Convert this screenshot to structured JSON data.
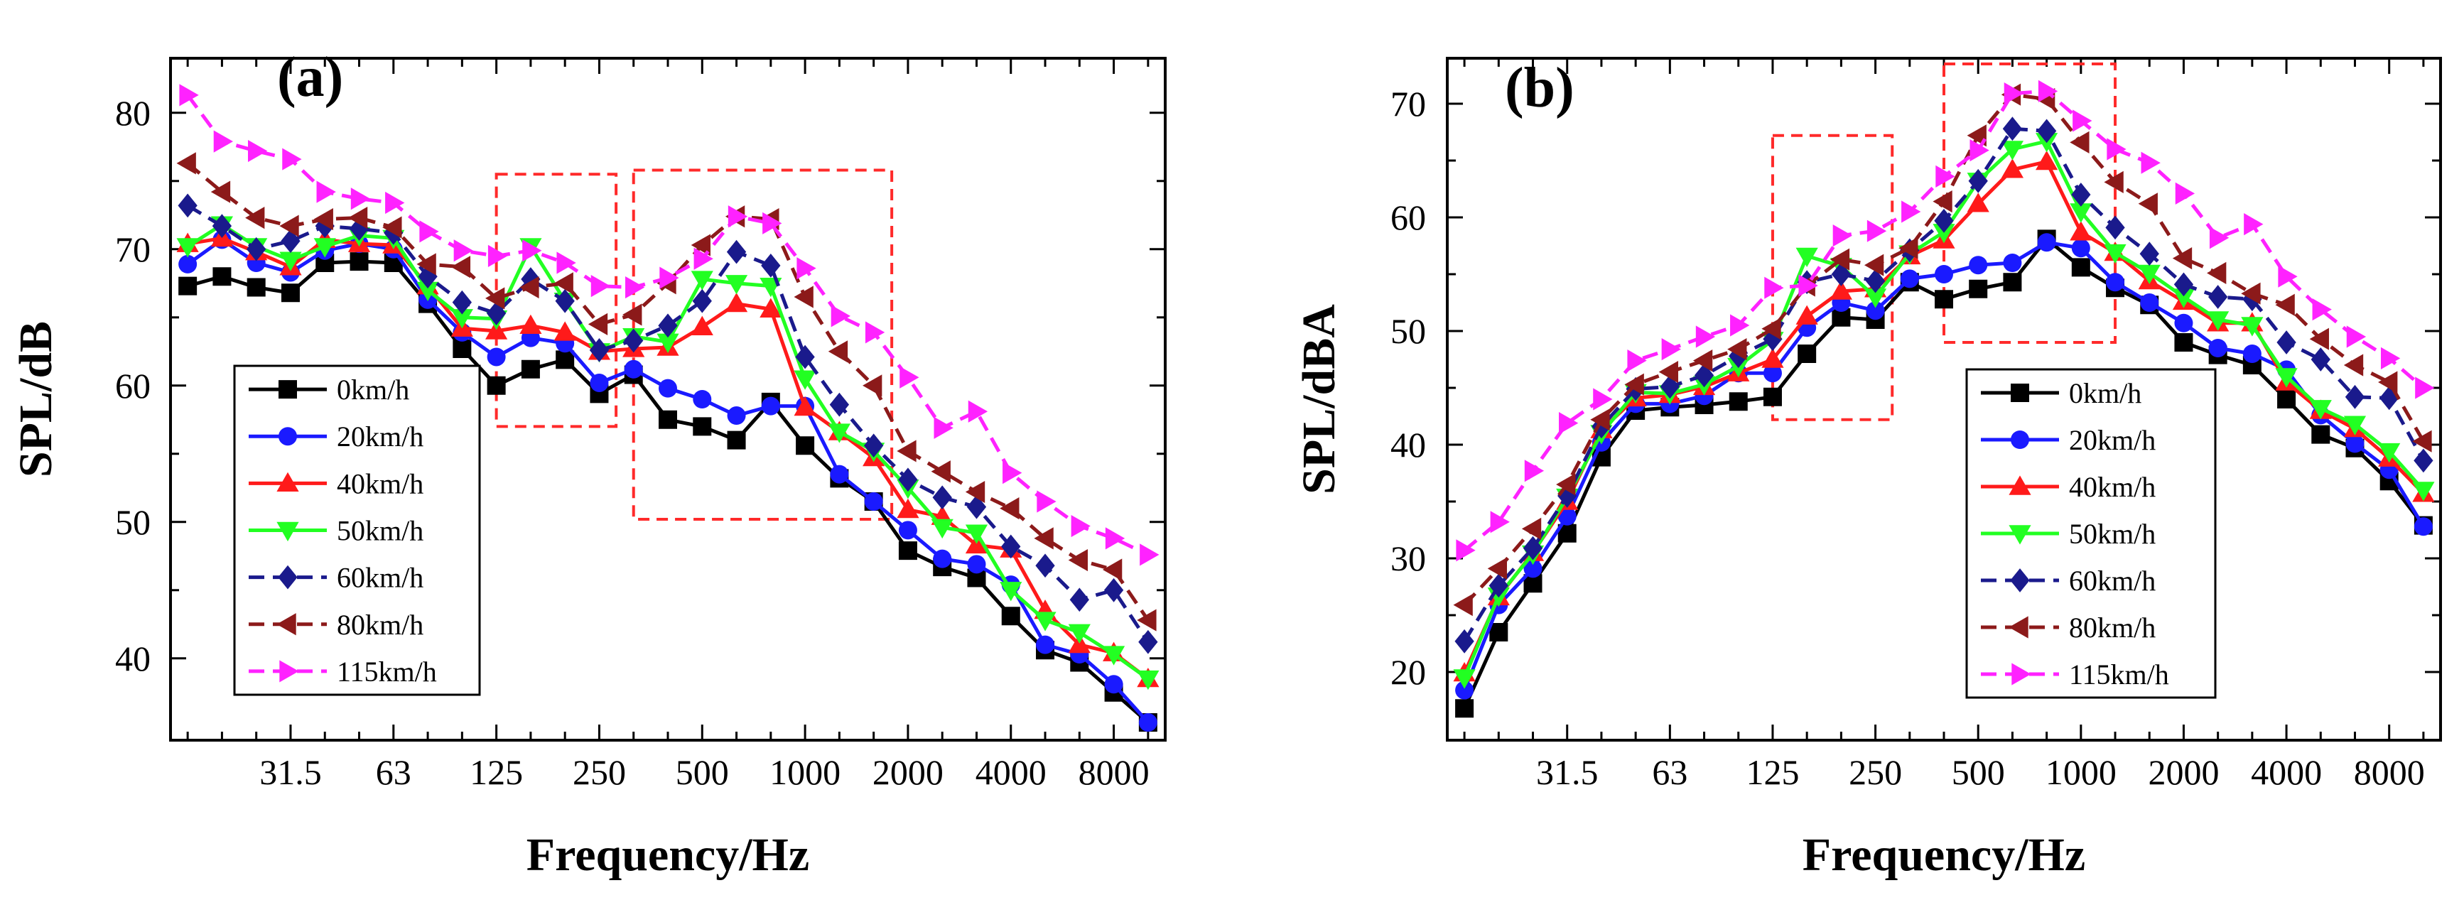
{
  "figure": {
    "colors": {
      "0km/h": "#000000",
      "20km/h": "#1a1aff",
      "40km/h": "#ff1a1a",
      "50km/h": "#22ff22",
      "60km/h": "#1a1a8c",
      "80km/h": "#8c1a1a",
      "115km/h": "#ff22ff",
      "highlight_box": "#ff2a2a"
    }
  },
  "chart_data": [
    {
      "type": "line",
      "panel_label": "(a)",
      "xlabel": "Frequency/Hz",
      "ylabel": "SPL/dB",
      "x_positions": [
        16,
        20,
        25,
        31.5,
        40,
        50,
        63,
        80,
        100,
        125,
        160,
        200,
        250,
        315,
        400,
        500,
        630,
        800,
        1000,
        1250,
        1600,
        2000,
        2500,
        3150,
        4000,
        5000,
        6300,
        8000,
        10000
      ],
      "x_tick_labels": [
        "31.5",
        "63",
        "125",
        "250",
        "500",
        "1000",
        "2000",
        "4000",
        "8000"
      ],
      "y_tick_labels": [
        "40",
        "50",
        "60",
        "70",
        "80"
      ],
      "ylim": [
        34,
        84
      ],
      "yticks": [
        40,
        50,
        60,
        70,
        80
      ],
      "highlight_boxes": [
        {
          "x_range": [
            125,
            280
          ],
          "y_range": [
            57,
            75.5
          ]
        },
        {
          "x_range": [
            315,
            1800
          ],
          "y_range": [
            50.2,
            75.8
          ]
        }
      ],
      "series": [
        {
          "name": "0km/h",
          "marker": "square",
          "dash": "solid",
          "values": [
            67.3,
            68.0,
            67.2,
            66.8,
            69.0,
            69.1,
            69.0,
            66.0,
            62.7,
            60.0,
            61.2,
            61.9,
            59.4,
            60.8,
            57.5,
            57.0,
            56.0,
            58.8,
            55.6,
            53.2,
            51.5,
            47.9,
            46.7,
            45.9,
            43.1,
            40.6,
            39.7,
            37.5,
            35.3
          ]
        },
        {
          "name": "20km/h",
          "marker": "circle",
          "dash": "solid",
          "values": [
            68.9,
            70.7,
            69.0,
            68.3,
            69.9,
            70.4,
            70.0,
            66.3,
            63.9,
            62.1,
            63.5,
            63.1,
            60.2,
            61.2,
            59.8,
            59.0,
            57.8,
            58.5,
            58.5,
            53.5,
            51.5,
            49.4,
            47.3,
            46.9,
            45.4,
            41.0,
            40.3,
            38.1,
            35.3
          ]
        },
        {
          "name": "40km/h",
          "marker": "triangle-up",
          "dash": "solid",
          "values": [
            70.4,
            70.8,
            69.8,
            68.7,
            70.7,
            70.4,
            70.3,
            67.3,
            64.2,
            64.0,
            64.4,
            63.9,
            62.5,
            62.7,
            62.8,
            64.3,
            66.0,
            65.6,
            58.4,
            56.6,
            54.7,
            50.9,
            50.4,
            48.3,
            48.0,
            43.5,
            41.0,
            40.4,
            38.5
          ]
        },
        {
          "name": "50km/h",
          "marker": "triangle-down",
          "dash": "solid",
          "values": [
            70.2,
            71.8,
            70.2,
            69.2,
            70.2,
            71.0,
            70.8,
            67.0,
            65.0,
            64.9,
            70.2,
            66.2,
            62.5,
            63.6,
            63.2,
            67.8,
            67.5,
            67.3,
            60.5,
            56.6,
            55.2,
            52.5,
            49.6,
            49.2,
            45.0,
            42.8,
            41.9,
            40.3,
            38.5
          ]
        },
        {
          "name": "60km/h",
          "marker": "diamond",
          "dash": "dash",
          "values": [
            73.2,
            71.7,
            70.0,
            70.6,
            71.7,
            71.5,
            71.2,
            68.0,
            66.1,
            65.3,
            67.8,
            66.2,
            62.6,
            63.3,
            64.4,
            66.2,
            69.8,
            68.8,
            62.1,
            58.6,
            55.6,
            53.1,
            51.8,
            51.1,
            48.2,
            46.8,
            44.3,
            45.0,
            41.2
          ]
        },
        {
          "name": "80km/h",
          "marker": "triangle-left",
          "dash": "dash",
          "values": [
            76.3,
            74.2,
            72.3,
            71.7,
            72.2,
            72.3,
            71.6,
            68.9,
            68.7,
            66.4,
            67.2,
            67.5,
            64.5,
            65.2,
            67.5,
            70.3,
            72.4,
            72.2,
            66.5,
            62.5,
            60.0,
            55.2,
            53.7,
            52.2,
            51.0,
            48.8,
            47.2,
            46.5,
            42.8
          ]
        },
        {
          "name": "115km/h",
          "marker": "triangle-right",
          "dash": "dash",
          "values": [
            81.3,
            77.9,
            77.2,
            76.6,
            74.2,
            73.7,
            73.4,
            71.3,
            69.9,
            69.5,
            69.9,
            69.0,
            67.3,
            67.2,
            67.9,
            69.3,
            72.4,
            71.9,
            68.6,
            65.1,
            63.9,
            60.6,
            56.9,
            58.1,
            53.6,
            51.5,
            49.7,
            48.8,
            47.6
          ]
        }
      ]
    },
    {
      "type": "line",
      "panel_label": "(b)",
      "xlabel": "Frequency/Hz",
      "ylabel": "SPL/dBA",
      "x_positions": [
        16,
        20,
        25,
        31.5,
        40,
        50,
        63,
        80,
        100,
        125,
        160,
        200,
        250,
        315,
        400,
        500,
        630,
        800,
        1000,
        1250,
        1600,
        2000,
        2500,
        3150,
        4000,
        5000,
        6300,
        8000,
        10000
      ],
      "x_tick_labels": [
        "31.5",
        "63",
        "125",
        "250",
        "500",
        "1000",
        "2000",
        "4000",
        "8000"
      ],
      "y_tick_labels": [
        "20",
        "30",
        "40",
        "50",
        "60",
        "70"
      ],
      "ylim": [
        14,
        74
      ],
      "yticks": [
        20,
        30,
        40,
        50,
        60,
        70
      ],
      "highlight_boxes": [
        {
          "x_range": [
            125,
            280
          ],
          "y_range": [
            42.2,
            67.2
          ]
        },
        {
          "x_range": [
            400,
            1250
          ],
          "y_range": [
            49,
            73.5
          ]
        }
      ],
      "series": [
        {
          "name": "0km/h",
          "marker": "square",
          "dash": "solid",
          "values": [
            16.8,
            23.5,
            27.8,
            32.2,
            38.9,
            43.0,
            43.3,
            43.5,
            43.8,
            44.2,
            48.0,
            51.2,
            51.0,
            54.3,
            52.8,
            53.7,
            54.3,
            58.1,
            55.6,
            53.8,
            52.3,
            49.0,
            47.9,
            47.0,
            44.0,
            40.9,
            39.7,
            36.8,
            32.9
          ]
        },
        {
          "name": "20km/h",
          "marker": "circle",
          "dash": "solid",
          "values": [
            18.4,
            25.9,
            29.1,
            33.7,
            40.2,
            43.6,
            43.6,
            44.3,
            46.3,
            46.3,
            50.3,
            52.5,
            51.8,
            54.6,
            55.0,
            55.8,
            56.0,
            57.8,
            57.3,
            54.3,
            52.5,
            50.7,
            48.5,
            48.0,
            46.6,
            42.6,
            40.1,
            37.8,
            32.8
          ]
        },
        {
          "name": "40km/h",
          "marker": "triangle-up",
          "dash": "solid",
          "values": [
            19.9,
            26.6,
            30.5,
            35.0,
            41.3,
            44.1,
            44.4,
            45.1,
            46.3,
            47.5,
            51.3,
            53.5,
            53.7,
            56.6,
            58.0,
            61.2,
            64.2,
            64.9,
            58.7,
            56.9,
            54.4,
            52.6,
            50.7,
            50.7,
            45.5,
            43.0,
            41.4,
            38.8,
            35.7
          ]
        },
        {
          "name": "50km/h",
          "marker": "triangle-down",
          "dash": "solid",
          "values": [
            19.5,
            26.7,
            30.4,
            35.4,
            41.0,
            44.6,
            44.5,
            45.3,
            46.9,
            49.2,
            56.6,
            55.7,
            53.0,
            56.8,
            58.7,
            63.2,
            66.0,
            66.7,
            60.5,
            56.9,
            55.1,
            53.0,
            51.0,
            50.5,
            46.0,
            43.2,
            41.8,
            39.4,
            36.0
          ]
        },
        {
          "name": "60km/h",
          "marker": "diamond",
          "dash": "dash",
          "values": [
            22.7,
            27.6,
            30.9,
            35.5,
            41.6,
            44.9,
            45.1,
            46.1,
            47.8,
            49.3,
            54.3,
            55.0,
            54.4,
            57.1,
            59.7,
            63.2,
            67.8,
            67.6,
            62.0,
            59.1,
            56.8,
            54.1,
            53.0,
            52.8,
            49.0,
            47.5,
            44.2,
            44.1,
            38.6
          ]
        },
        {
          "name": "80km/h",
          "marker": "triangle-left",
          "dash": "dash",
          "values": [
            25.9,
            29.1,
            32.6,
            36.5,
            42.2,
            45.3,
            46.4,
            47.4,
            48.4,
            50.2,
            54.0,
            56.3,
            55.8,
            57.3,
            61.4,
            67.2,
            70.8,
            70.4,
            66.6,
            63.1,
            61.2,
            56.4,
            55.1,
            53.3,
            52.3,
            49.3,
            47.0,
            45.5,
            40.3
          ]
        },
        {
          "name": "115km/h",
          "marker": "triangle-right",
          "dash": "dash",
          "values": [
            30.7,
            33.2,
            37.7,
            41.9,
            44.0,
            47.4,
            48.4,
            49.5,
            50.5,
            53.8,
            54.0,
            58.4,
            58.8,
            60.5,
            63.6,
            65.9,
            70.9,
            71.1,
            68.5,
            66.0,
            64.8,
            62.1,
            58.2,
            59.4,
            54.8,
            51.9,
            49.5,
            47.6,
            45.0
          ]
        }
      ]
    }
  ]
}
